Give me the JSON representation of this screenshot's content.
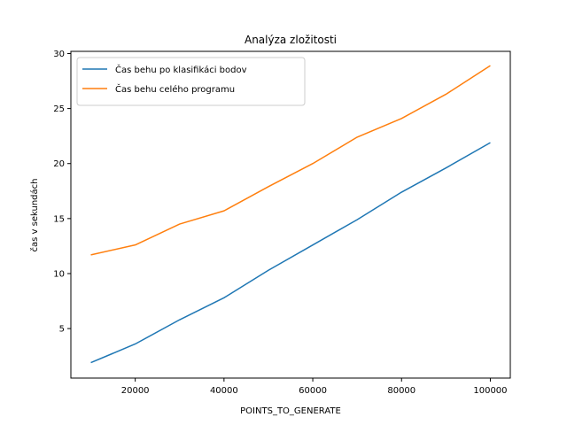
{
  "chart_data": {
    "type": "line",
    "title": "Analýza zložitosti",
    "xlabel": "POINTS_TO_GENERATE",
    "ylabel": "čas v sekundách",
    "x": [
      10000,
      20000,
      30000,
      40000,
      50000,
      60000,
      70000,
      80000,
      90000,
      100000
    ],
    "xlim": [
      5500,
      104500
    ],
    "ylim": [
      0.5,
      30.2
    ],
    "xticks": [
      20000,
      40000,
      60000,
      80000,
      100000
    ],
    "yticks": [
      5,
      10,
      15,
      20,
      25,
      30
    ],
    "grid": false,
    "legend_position": "top-left",
    "series": [
      {
        "name": "Čas behu po klasifikáci bodov",
        "color": "#1f77b4",
        "values": [
          1.9,
          3.6,
          5.8,
          7.8,
          10.3,
          12.6,
          14.9,
          17.4,
          19.6,
          21.9
        ]
      },
      {
        "name": "Čas behu celého programu",
        "color": "#ff7f0e",
        "values": [
          11.7,
          12.6,
          14.5,
          15.7,
          17.9,
          20.0,
          22.4,
          24.1,
          26.3,
          28.9
        ]
      }
    ]
  }
}
